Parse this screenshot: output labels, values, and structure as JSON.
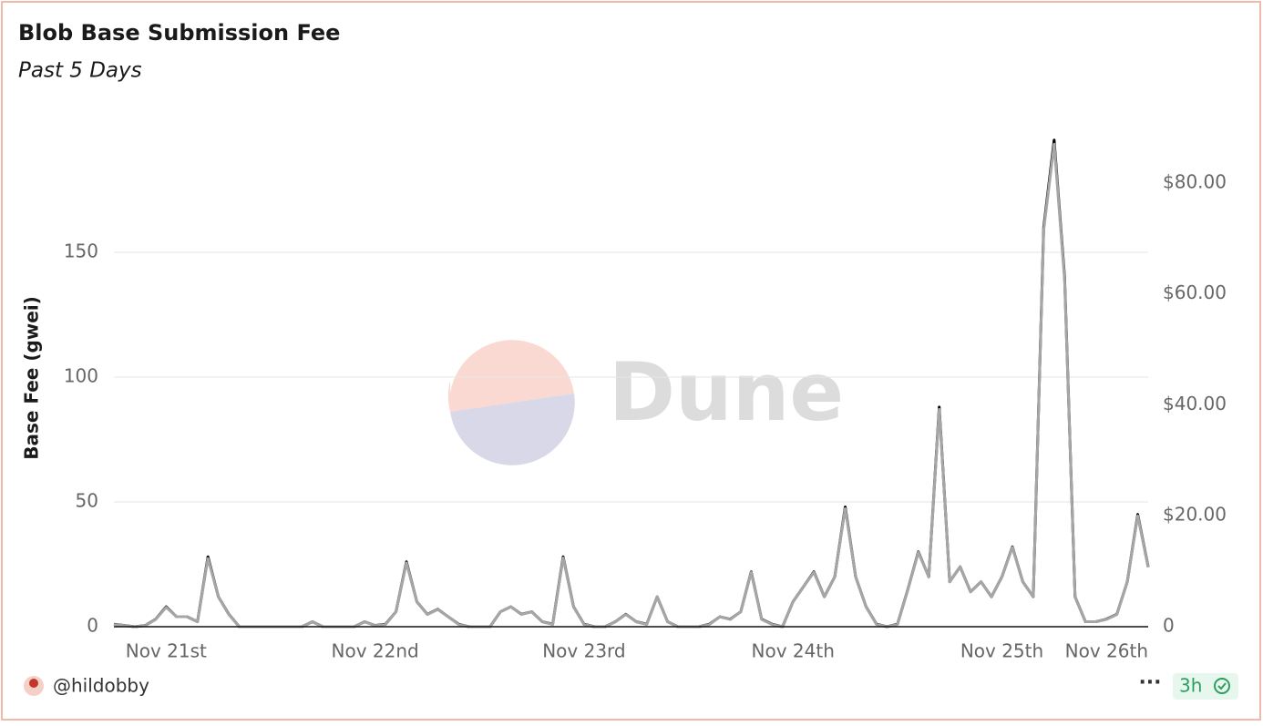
{
  "chart_data": {
    "type": "line",
    "title": "Blob Base Submission Fee",
    "subtitle": "Past 5 Days",
    "y_label": "Base Fee (gwei)",
    "watermark": "Dune",
    "author": "@hildobby",
    "age": "3h",
    "categories": [
      null,
      null,
      null,
      null,
      null,
      "Nov 21st",
      null,
      null,
      null,
      null,
      null,
      null,
      null,
      null,
      null,
      null,
      null,
      null,
      null,
      null,
      null,
      null,
      null,
      null,
      null,
      "Nov 22nd",
      null,
      null,
      null,
      null,
      null,
      null,
      null,
      null,
      null,
      null,
      null,
      null,
      null,
      null,
      null,
      null,
      null,
      null,
      null,
      "Nov 23rd",
      null,
      null,
      null,
      null,
      null,
      null,
      null,
      null,
      null,
      null,
      null,
      null,
      null,
      null,
      null,
      null,
      null,
      null,
      null,
      "Nov 24th",
      null,
      null,
      null,
      null,
      null,
      null,
      null,
      null,
      null,
      null,
      null,
      null,
      null,
      null,
      null,
      null,
      null,
      null,
      null,
      "Nov 25th",
      null,
      null,
      null,
      null,
      null,
      null,
      null,
      null,
      null,
      null,
      null,
      null,
      null,
      "Nov 26th"
    ],
    "series": [
      {
        "color": "#000000",
        "axis": "y",
        "values": [
          1,
          0.5,
          0,
          0.5,
          3,
          8,
          4,
          4,
          2,
          28,
          12,
          5,
          0,
          0,
          0,
          0,
          0,
          0,
          0,
          2,
          0,
          0,
          0,
          0,
          2,
          0.5,
          1,
          6,
          26,
          10,
          5,
          7,
          4,
          1,
          0,
          0,
          0,
          6,
          8,
          5,
          6,
          2,
          1,
          28,
          8,
          1,
          0,
          0,
          2,
          5,
          2,
          1,
          12,
          2,
          0,
          0,
          0,
          1,
          4,
          3,
          6,
          22,
          3,
          1,
          0,
          10,
          16,
          22,
          12,
          20,
          48,
          20,
          8,
          1,
          0,
          1,
          15,
          30,
          20,
          88,
          18,
          24,
          14,
          18,
          12,
          20,
          32,
          18,
          12,
          160,
          195,
          140,
          12,
          2,
          2,
          3,
          5,
          18,
          45,
          24
        ]
      },
      {
        "color": "#a6a6a6",
        "axis": "y2",
        "values": [
          0.4,
          0.2,
          0,
          0.2,
          1.3,
          3.5,
          1.8,
          1.8,
          0.9,
          12.3,
          5.4,
          2.2,
          0,
          0,
          0,
          0,
          0,
          0,
          0,
          0.9,
          0,
          0,
          0,
          0,
          0.9,
          0.2,
          0.4,
          2.7,
          11.5,
          4.5,
          2.2,
          3.1,
          1.8,
          0.4,
          0,
          0,
          0,
          2.7,
          3.6,
          2.2,
          2.7,
          0.9,
          0.4,
          12.4,
          3.6,
          0.4,
          0,
          0,
          0.9,
          2.2,
          0.9,
          0.4,
          5.4,
          0.9,
          0,
          0,
          0,
          0.4,
          1.8,
          1.3,
          2.7,
          9.8,
          1.3,
          0.4,
          0,
          4.5,
          7.2,
          9.8,
          5.4,
          9,
          21.3,
          9,
          3.6,
          0.4,
          0,
          0.4,
          6.7,
          13.4,
          9,
          39.2,
          8.1,
          10.8,
          6.3,
          8.1,
          5.4,
          9,
          14.3,
          8.1,
          5.4,
          71.5,
          87,
          62.5,
          5.4,
          0.9,
          0.9,
          1.3,
          2.2,
          8.1,
          20,
          10.7
        ]
      }
    ],
    "ylim": [
      0,
      200
    ],
    "yticks": [
      0,
      50,
      100,
      150
    ],
    "y2lim": [
      0,
      90
    ],
    "y2ticks": [
      0,
      {
        "value": 20,
        "label": "$20.00"
      },
      {
        "value": 40,
        "label": "$40.00"
      },
      {
        "value": 60,
        "label": "$60.00"
      },
      {
        "value": 80,
        "label": "$80.00"
      }
    ],
    "grid": true
  }
}
